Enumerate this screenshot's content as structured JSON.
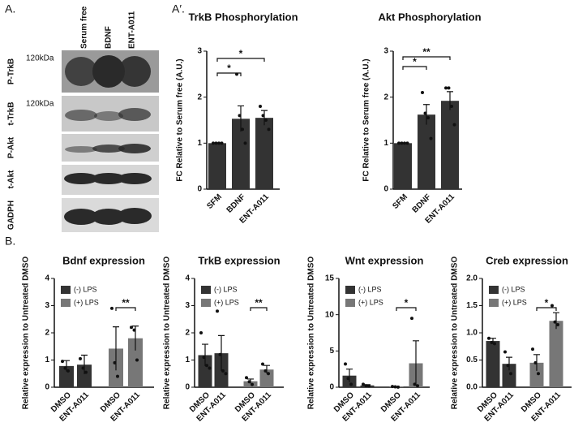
{
  "panel_labels": [
    "A.",
    "A′.",
    "B."
  ],
  "blot": {
    "columns": [
      "Serum free",
      "BDNF",
      "ENT-A011"
    ],
    "rows": [
      {
        "label": "P-TrkB",
        "marker": "120kDa"
      },
      {
        "label": "t-TrkB",
        "marker": "120kDa"
      },
      {
        "label": "P-Akt"
      },
      {
        "label": "t-Akt"
      },
      {
        "label": "GADPH"
      }
    ]
  },
  "chart_data": [
    {
      "type": "bar",
      "title": "TrkB Phosphorylation",
      "ylabel": "FC Relative to Serum free (A.U.)",
      "categories": [
        "SFM",
        "BDNF",
        "ENT-A011"
      ],
      "values": [
        1,
        1.53,
        1.55
      ],
      "errors": [
        0,
        0.28,
        0.16
      ],
      "points": [
        [
          1,
          1,
          1,
          1
        ],
        [
          2.5,
          1.6,
          1.3,
          1.0
        ],
        [
          1.8,
          1.6,
          1.5,
          1.3
        ]
      ],
      "color": "#333333",
      "ylim": [
        0,
        3
      ],
      "yticks": [
        0,
        1,
        2,
        3
      ],
      "significance": [
        "*",
        "*"
      ]
    },
    {
      "type": "bar",
      "title": "Akt Phosphorylation",
      "ylabel": "FC Relative to Serum free (A.U.)",
      "categories": [
        "SFM",
        "BDNF",
        "ENT-A011"
      ],
      "values": [
        1,
        1.62,
        1.92
      ],
      "errors": [
        0,
        0.22,
        0.2
      ],
      "points": [
        [
          1,
          1,
          1,
          1
        ],
        [
          2.1,
          1.65,
          1.55,
          1.1
        ],
        [
          2.2,
          2.2,
          1.8,
          1.4
        ]
      ],
      "color": "#333333",
      "ylim": [
        0,
        3
      ],
      "yticks": [
        0,
        1,
        2,
        3
      ],
      "significance": [
        "*",
        "**"
      ]
    },
    {
      "type": "bar",
      "title": "Bdnf expression",
      "ylabel": "Relative expression to Untreated DMSO",
      "categories": [
        "DMSO",
        "ENT-A011",
        "DMSO",
        "ENT-A011"
      ],
      "series": [
        {
          "name": "(-) LPS",
          "color": "#333333",
          "values": [
            0.78,
            0.83,
            null,
            null
          ],
          "errors": [
            0.2,
            0.35,
            null,
            null
          ],
          "points": [
            [
              0.95,
              0.7,
              0.6
            ],
            [
              1.05,
              0.7,
              0.55
            ],
            null,
            null
          ]
        },
        {
          "name": "(+) LPS",
          "color": "#777777",
          "values": [
            null,
            null,
            1.42,
            1.8
          ],
          "errors": [
            null,
            null,
            0.8,
            0.45
          ],
          "points": [
            null,
            null,
            [
              2.9,
              0.9,
              0.4
            ],
            [
              2.2,
              2.1,
              1.0
            ]
          ]
        }
      ],
      "ylim": [
        0,
        4
      ],
      "yticks": [
        0,
        1,
        2,
        3,
        4
      ],
      "significance": [
        "**"
      ]
    },
    {
      "type": "bar",
      "title": "TrkB expression",
      "ylabel": "Relative expression to Untreated DMSO",
      "categories": [
        "DMSO",
        "ENT-A011",
        "DMSO",
        "ENT-A011"
      ],
      "series": [
        {
          "name": "(-) LPS",
          "color": "#333333",
          "values": [
            1.18,
            1.25,
            null,
            null
          ],
          "errors": [
            0.4,
            0.65,
            null,
            null
          ],
          "points": [
            [
              2.0,
              1.1,
              0.8,
              0.7
            ],
            [
              2.8,
              1.2,
              0.6,
              0.5
            ],
            null,
            null
          ]
        },
        {
          "name": "(+) LPS",
          "color": "#777777",
          "values": [
            null,
            null,
            0.22,
            0.65
          ],
          "errors": [
            null,
            null,
            0.08,
            0.15
          ],
          "points": [
            null,
            null,
            [
              0.35,
              0.2,
              0.1
            ],
            [
              0.85,
              0.6,
              0.5
            ]
          ]
        }
      ],
      "ylim": [
        0,
        4
      ],
      "yticks": [
        0,
        1,
        2,
        3,
        4
      ],
      "significance": [
        "**"
      ]
    },
    {
      "type": "bar",
      "title": "Wnt expression",
      "ylabel": "Relative expression to Untreated DMSO",
      "categories": [
        "DMSO",
        "ENT-A011",
        "DMSO",
        "ENT-A011"
      ],
      "series": [
        {
          "name": "(-) LPS",
          "color": "#333333",
          "values": [
            1.6,
            0.25,
            null,
            null
          ],
          "errors": [
            0.9,
            0.1,
            null,
            null
          ],
          "points": [
            [
              3.2,
              1.2,
              0.4
            ],
            [
              0.4,
              0.2,
              0.15
            ],
            null,
            null
          ]
        },
        {
          "name": "(+) LPS",
          "color": "#777777",
          "values": [
            null,
            null,
            0.05,
            3.3
          ],
          "errors": [
            null,
            null,
            0.05,
            3.1
          ],
          "points": [
            null,
            null,
            [
              0.1,
              0.05,
              0.02
            ],
            [
              9.5,
              0.4,
              0.2
            ]
          ]
        }
      ],
      "ylim": [
        0,
        15
      ],
      "yticks": [
        0,
        5,
        10,
        15
      ],
      "significance": [
        "*"
      ]
    },
    {
      "type": "bar",
      "title": "Creb expression",
      "ylabel": "Relative expression to Untreated DMSO",
      "categories": [
        "DMSO",
        "ENT-A011",
        "DMSO",
        "ENT-A011"
      ],
      "series": [
        {
          "name": "(-) LPS",
          "color": "#333333",
          "values": [
            0.85,
            0.43,
            null,
            null
          ],
          "errors": [
            0.05,
            0.12,
            null,
            null
          ],
          "points": [
            [
              0.9,
              0.82,
              0.8
            ],
            [
              0.65,
              0.4,
              0.25
            ],
            null,
            null
          ]
        },
        {
          "name": "(+) LPS",
          "color": "#777777",
          "values": [
            null,
            null,
            0.45,
            1.22
          ],
          "errors": [
            null,
            null,
            0.15,
            0.15
          ],
          "points": [
            null,
            null,
            [
              0.7,
              0.45,
              0.25
            ],
            [
              1.5,
              1.2,
              1.15
            ]
          ]
        }
      ],
      "ylim": [
        0,
        2
      ],
      "yticks": [
        {
          "value": 0,
          "label": "0.0"
        },
        0.5,
        {
          "value": 1,
          "label": "1.0"
        },
        1.5,
        {
          "value": 2,
          "label": "2.0"
        }
      ],
      "significance": [
        "*"
      ]
    }
  ]
}
